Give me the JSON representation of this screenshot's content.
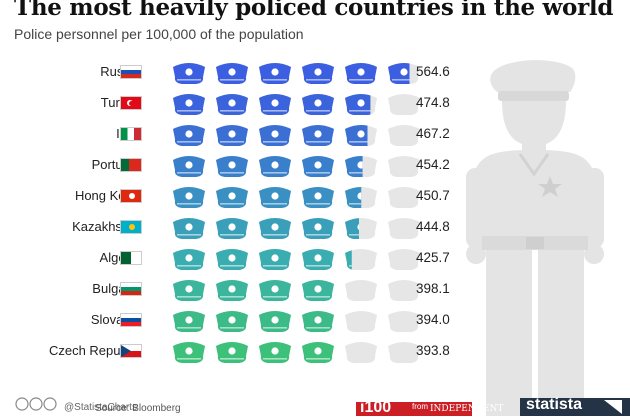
{
  "title": "The most heavily policed countries in the world",
  "subtitle": "Police personnel per 100,000 of the population",
  "footer": {
    "license": "@StatistaCharts",
    "source": "Source: Bloomberg",
    "badge_i100": "i100",
    "from_label": "from",
    "the_independent": "INDEPENDENT",
    "brand": "statista"
  },
  "colors": {
    "icon_gradient_start": "#3b5fe0",
    "icon_gradient_mid": "#3aa6b8",
    "icon_gradient_end": "#3cc07a",
    "icon_empty": "#e6e6e6",
    "silhouette": "#e4e4e4"
  },
  "chart_data": {
    "type": "bar",
    "unit_per_icon": 100,
    "categories": [
      "Russia",
      "Turkey",
      "Italy",
      "Portugal",
      "Hong Kong",
      "Kazakhstan",
      "Algeria",
      "Bulgaria",
      "Slovakia",
      "Czech Republic"
    ],
    "values": [
      564.6,
      474.8,
      467.2,
      454.2,
      450.7,
      444.8,
      425.7,
      398.1,
      394.0,
      393.8
    ],
    "value_labels": [
      "564.6",
      "474.8",
      "467.2",
      "454.2",
      "450.7",
      "444.8",
      "425.7",
      "398.1",
      "394.0",
      "393.8"
    ],
    "icon_colors": [
      "#3b5fe0",
      "#3b63db",
      "#3b6fd4",
      "#3a7fcb",
      "#3a90c2",
      "#3aa0ba",
      "#3aadb0",
      "#3bb59c",
      "#3cbb88",
      "#3cc07a"
    ],
    "flags": [
      "russia-flag",
      "turkey-flag",
      "italy-flag",
      "portugal-flag",
      "hong-kong-flag",
      "kazakhstan-flag",
      "algeria-flag",
      "bulgaria-flag",
      "slovakia-flag",
      "czech-flag"
    ]
  }
}
